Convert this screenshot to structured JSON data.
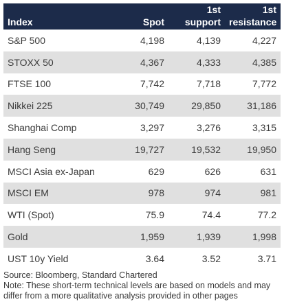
{
  "table": {
    "headers": {
      "index": "Index",
      "spot": "Spot",
      "support_line1": "1st",
      "support_line2": "support",
      "resistance_line1": "1st",
      "resistance_line2": "resistance"
    },
    "rows": [
      {
        "name": "S&P 500",
        "spot": "4,198",
        "support": "4,139",
        "resistance": "4,227"
      },
      {
        "name": "STOXX 50",
        "spot": "4,367",
        "support": "4,333",
        "resistance": "4,385"
      },
      {
        "name": "FTSE 100",
        "spot": "7,742",
        "support": "7,718",
        "resistance": "7,772"
      },
      {
        "name": "Nikkei 225",
        "spot": "30,749",
        "support": "29,850",
        "resistance": "31,186"
      },
      {
        "name": "Shanghai Comp",
        "spot": "3,297",
        "support": "3,276",
        "resistance": "3,315"
      },
      {
        "name": "Hang Seng",
        "spot": "19,727",
        "support": "19,532",
        "resistance": "19,950"
      },
      {
        "name": "MSCI Asia ex-Japan",
        "spot": "629",
        "support": "626",
        "resistance": "631"
      },
      {
        "name": "MSCI EM",
        "spot": "978",
        "support": "974",
        "resistance": "981"
      },
      {
        "name": "WTI (Spot)",
        "spot": "75.9",
        "support": "74.4",
        "resistance": "77.2"
      },
      {
        "name": "Gold",
        "spot": "1,959",
        "support": "1,939",
        "resistance": "1,998"
      },
      {
        "name": "UST 10y Yield",
        "spot": "3.64",
        "support": "3.52",
        "resistance": "3.71"
      }
    ]
  },
  "footer": {
    "source": "Source: Bloomberg, Standard Chartered",
    "note": "Note: These short-term technical levels are based on models and may differ from a more qualitative analysis provided in other pages"
  },
  "colors": {
    "header_bg": "#1c2b4a",
    "stripe_bg": "#e0e0e0",
    "text": "#3a3a3a"
  }
}
